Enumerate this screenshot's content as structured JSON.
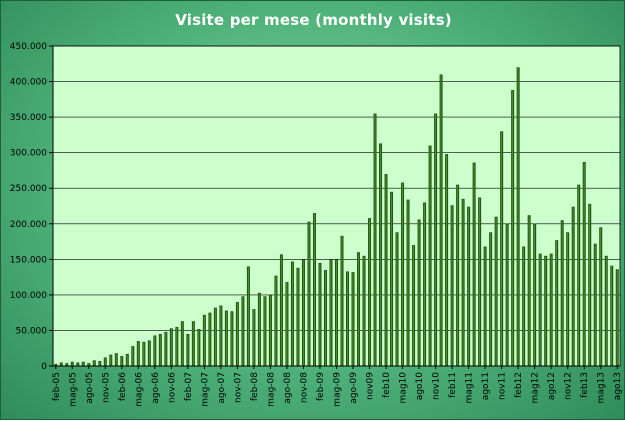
{
  "chart_data": {
    "type": "bar",
    "title": "Visite per mese (monthly visits)",
    "xlabel": "",
    "ylabel": "",
    "ylim": [
      0,
      450000
    ],
    "y_ticks": [
      "0",
      "50.000",
      "100.000",
      "150.000",
      "200.000",
      "250.000",
      "300.000",
      "350.000",
      "400.000",
      "450.000"
    ],
    "categories": [
      "feb-05",
      "mar-05",
      "apr-05",
      "mag-05",
      "giu-05",
      "lug-05",
      "ago-05",
      "set-05",
      "ott-05",
      "nov-05",
      "dic-05",
      "gen-06",
      "feb-06",
      "mar-06",
      "apr-06",
      "mag-06",
      "giu-06",
      "lug-06",
      "ago-06",
      "set-06",
      "ott-06",
      "nov-06",
      "dic-06",
      "gen-07",
      "feb-07",
      "mar-07",
      "apr-07",
      "mag-07",
      "giu-07",
      "lug-07",
      "ago-07",
      "set-07",
      "ott-07",
      "nov-07",
      "dic-07",
      "gen-08",
      "feb-08",
      "mar-08",
      "apr-08",
      "mag-08",
      "giu-08",
      "lug-08",
      "ago-08",
      "set-08",
      "ott-08",
      "nov-08",
      "dic-08",
      "gen-09",
      "feb-09",
      "mar-09",
      "apr-09",
      "mag-09",
      "giu-09",
      "lug-09",
      "ago-09",
      "set-09",
      "ott-09",
      "nov09",
      "dic09",
      "gen10",
      "feb10",
      "mar10",
      "apr10",
      "mag10",
      "giu10",
      "lug10",
      "ago10",
      "set10",
      "ott10",
      "nov10",
      "dic10",
      "gen11",
      "feb11",
      "mar11",
      "apr11",
      "mag11",
      "giu11",
      "lug11",
      "ago11",
      "set11",
      "ott11",
      "nov11",
      "dic11",
      "gen12",
      "feb12",
      "mar12",
      "apr12",
      "mag12",
      "giu12",
      "lug12",
      "ago12",
      "set12",
      "ott12",
      "nov12",
      "dic12",
      "gen13",
      "feb13",
      "mar13",
      "apr13",
      "mag13",
      "giu13",
      "lug13",
      "ago13"
    ],
    "x_tick_labels": [
      "feb-05",
      "mag-05",
      "ago-05",
      "nov-05",
      "feb-06",
      "mag-06",
      "ago-06",
      "nov-06",
      "feb-07",
      "mag-07",
      "ago-07",
      "nov-07",
      "feb-08",
      "mag-08",
      "ago-08",
      "nov-08",
      "feb-09",
      "mag-09",
      "ago-09",
      "nov09",
      "feb10",
      "mag10",
      "ago10",
      "nov10",
      "feb11",
      "mag11",
      "ago11",
      "nov11",
      "feb12",
      "mag12",
      "ago12",
      "nov12",
      "feb13",
      "mag13",
      "ago13"
    ],
    "values": [
      3000,
      5000,
      4000,
      6000,
      5000,
      6000,
      4000,
      8000,
      7000,
      12000,
      16000,
      18000,
      14000,
      17000,
      28000,
      35000,
      34000,
      36000,
      43000,
      45000,
      48000,
      53000,
      55000,
      63000,
      45000,
      63000,
      52000,
      72000,
      75000,
      82000,
      85000,
      78000,
      77000,
      90000,
      98000,
      140000,
      80000,
      103000,
      98000,
      100000,
      127000,
      157000,
      118000,
      147000,
      138000,
      150000,
      203000,
      215000,
      145000,
      135000,
      150000,
      150000,
      183000,
      133000,
      132000,
      160000,
      155000,
      208000,
      355000,
      313000,
      270000,
      245000,
      188000,
      258000,
      234000,
      170000,
      206000,
      230000,
      310000,
      355000,
      410000,
      298000,
      226000,
      255000,
      235000,
      224000,
      286000,
      237000,
      168000,
      188000,
      210000,
      330000,
      200000,
      388000,
      420000,
      168000,
      212000,
      200000,
      158000,
      155000,
      158000,
      177000,
      205000,
      188000,
      224000,
      255000,
      287000,
      228000,
      172000,
      195000,
      155000,
      141000,
      136000
    ],
    "bar_color": "#1f5a12",
    "bar_highlight": "#8cd45c",
    "plot_background": "#ccffcc",
    "grid": true,
    "legend": "none"
  }
}
